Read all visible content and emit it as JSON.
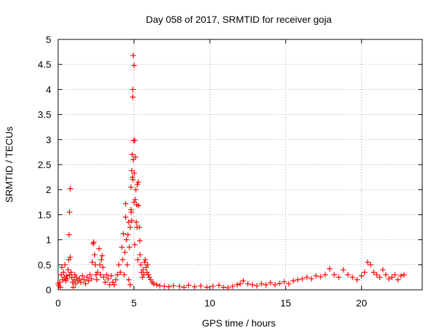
{
  "chart_data": {
    "type": "scatter",
    "title": "Day 058 of 2017, SRMTID for receiver goja",
    "xlabel": "GPS time / hours",
    "ylabel": "SRMTID / TECUs",
    "xlim": [
      0,
      24
    ],
    "ylim": [
      0,
      5
    ],
    "xticks": [
      "0",
      "5",
      "10",
      "15",
      "20"
    ],
    "yticks": [
      "0",
      "0.5",
      "1",
      "1.5",
      "2",
      "2.5",
      "3",
      "3.5",
      "4",
      "4.5",
      "5"
    ],
    "grid": true,
    "marker": "+",
    "series": [
      {
        "name": "SRMTID",
        "color": "#ff0000",
        "points": [
          [
            0.0,
            0.12
          ],
          [
            0.05,
            0.08
          ],
          [
            0.1,
            0.15
          ],
          [
            0.15,
            0.05
          ],
          [
            0.2,
            0.3
          ],
          [
            0.25,
            0.45
          ],
          [
            0.3,
            0.2
          ],
          [
            0.35,
            0.35
          ],
          [
            0.4,
            0.25
          ],
          [
            0.45,
            0.5
          ],
          [
            0.5,
            0.18
          ],
          [
            0.55,
            0.28
          ],
          [
            0.6,
            0.22
          ],
          [
            0.65,
            0.4
          ],
          [
            0.7,
            0.6
          ],
          [
            0.75,
            0.3
          ],
          [
            0.72,
            1.1
          ],
          [
            0.75,
            1.55
          ],
          [
            0.8,
            2.02
          ],
          [
            0.8,
            0.65
          ],
          [
            0.85,
            0.35
          ],
          [
            0.9,
            0.25
          ],
          [
            0.95,
            0.15
          ],
          [
            1.0,
            0.05
          ],
          [
            1.05,
            0.2
          ],
          [
            1.1,
            0.3
          ],
          [
            1.15,
            0.12
          ],
          [
            1.2,
            0.25
          ],
          [
            1.3,
            0.18
          ],
          [
            1.4,
            0.22
          ],
          [
            1.5,
            0.15
          ],
          [
            1.6,
            0.28
          ],
          [
            1.7,
            0.2
          ],
          [
            1.8,
            0.12
          ],
          [
            1.9,
            0.25
          ],
          [
            2.0,
            0.18
          ],
          [
            2.1,
            0.3
          ],
          [
            2.2,
            0.22
          ],
          [
            2.25,
            0.55
          ],
          [
            2.3,
            0.92
          ],
          [
            2.35,
            0.95
          ],
          [
            2.4,
            0.7
          ],
          [
            2.45,
            0.5
          ],
          [
            2.5,
            0.3
          ],
          [
            2.55,
            0.2
          ],
          [
            2.6,
            0.35
          ],
          [
            2.7,
            0.82
          ],
          [
            2.75,
            0.5
          ],
          [
            2.8,
            0.3
          ],
          [
            2.85,
            0.6
          ],
          [
            2.9,
            0.68
          ],
          [
            2.95,
            0.45
          ],
          [
            3.0,
            0.25
          ],
          [
            3.1,
            0.15
          ],
          [
            3.2,
            0.3
          ],
          [
            3.3,
            0.22
          ],
          [
            3.4,
            0.1
          ],
          [
            3.5,
            0.28
          ],
          [
            3.6,
            0.15
          ],
          [
            3.7,
            0.1
          ],
          [
            3.8,
            0.2
          ],
          [
            3.9,
            0.3
          ],
          [
            4.0,
            0.5
          ],
          [
            4.1,
            0.35
          ],
          [
            4.2,
            0.85
          ],
          [
            4.25,
            0.6
          ],
          [
            4.3,
            1.12
          ],
          [
            4.35,
            0.3
          ],
          [
            4.4,
            0.75
          ],
          [
            4.45,
            1.45
          ],
          [
            4.45,
            1.72
          ],
          [
            4.5,
            1.0
          ],
          [
            4.55,
            0.5
          ],
          [
            4.6,
            1.1
          ],
          [
            4.65,
            1.35
          ],
          [
            4.65,
            0.2
          ],
          [
            4.7,
            0.85
          ],
          [
            4.75,
            1.25
          ],
          [
            4.75,
            0.1
          ],
          [
            4.8,
            1.6
          ],
          [
            4.8,
            2.05
          ],
          [
            4.82,
            1.55
          ],
          [
            4.85,
            2.38
          ],
          [
            4.85,
            1.38
          ],
          [
            4.88,
            2.7
          ],
          [
            4.9,
            2.25
          ],
          [
            4.92,
            3.85
          ],
          [
            4.92,
            4.0
          ],
          [
            4.93,
            2.2
          ],
          [
            4.95,
            2.6
          ],
          [
            4.95,
            4.68
          ],
          [
            4.97,
            2.98
          ],
          [
            5.0,
            4.48
          ],
          [
            5.0,
            1.75
          ],
          [
            5.02,
            2.33
          ],
          [
            5.05,
            0.9
          ],
          [
            5.05,
            2.98
          ],
          [
            5.08,
            1.8
          ],
          [
            5.1,
            2.65
          ],
          [
            5.12,
            2.0
          ],
          [
            5.15,
            1.35
          ],
          [
            5.18,
            1.7
          ],
          [
            5.2,
            1.25
          ],
          [
            5.22,
            2.1
          ],
          [
            5.25,
            0.6
          ],
          [
            5.28,
            2.15
          ],
          [
            5.3,
            1.68
          ],
          [
            5.35,
            1.25
          ],
          [
            5.38,
            0.98
          ],
          [
            5.4,
            0.7
          ],
          [
            5.45,
            0.5
          ],
          [
            5.5,
            0.35
          ],
          [
            5.55,
            0.25
          ],
          [
            5.6,
            0.4
          ],
          [
            5.65,
            0.3
          ],
          [
            5.7,
            0.55
          ],
          [
            5.75,
            0.6
          ],
          [
            5.8,
            0.45
          ],
          [
            5.85,
            0.35
          ],
          [
            5.9,
            0.5
          ],
          [
            5.95,
            0.3
          ],
          [
            6.0,
            0.25
          ],
          [
            6.1,
            0.2
          ],
          [
            6.2,
            0.15
          ],
          [
            6.3,
            0.12
          ],
          [
            6.5,
            0.1
          ],
          [
            6.7,
            0.08
          ],
          [
            7.0,
            0.07
          ],
          [
            7.3,
            0.06
          ],
          [
            7.6,
            0.08
          ],
          [
            8.0,
            0.07
          ],
          [
            8.3,
            0.05
          ],
          [
            8.6,
            0.09
          ],
          [
            9.0,
            0.06
          ],
          [
            9.4,
            0.08
          ],
          [
            9.8,
            0.05
          ],
          [
            10.2,
            0.07
          ],
          [
            10.6,
            0.09
          ],
          [
            10.9,
            0.05
          ],
          [
            11.2,
            0.04
          ],
          [
            11.5,
            0.07
          ],
          [
            11.8,
            0.1
          ],
          [
            12.0,
            0.12
          ],
          [
            12.2,
            0.18
          ],
          [
            12.5,
            0.12
          ],
          [
            12.8,
            0.1
          ],
          [
            13.1,
            0.08
          ],
          [
            13.4,
            0.12
          ],
          [
            13.7,
            0.1
          ],
          [
            14.0,
            0.14
          ],
          [
            14.3,
            0.1
          ],
          [
            14.6,
            0.13
          ],
          [
            14.9,
            0.16
          ],
          [
            15.2,
            0.12
          ],
          [
            15.5,
            0.18
          ],
          [
            15.8,
            0.2
          ],
          [
            16.1,
            0.22
          ],
          [
            16.4,
            0.25
          ],
          [
            16.7,
            0.22
          ],
          [
            17.0,
            0.28
          ],
          [
            17.3,
            0.26
          ],
          [
            17.6,
            0.3
          ],
          [
            17.9,
            0.42
          ],
          [
            18.2,
            0.3
          ],
          [
            18.5,
            0.25
          ],
          [
            18.8,
            0.4
          ],
          [
            19.1,
            0.3
          ],
          [
            19.4,
            0.25
          ],
          [
            19.7,
            0.2
          ],
          [
            20.0,
            0.28
          ],
          [
            20.2,
            0.35
          ],
          [
            20.4,
            0.55
          ],
          [
            20.6,
            0.5
          ],
          [
            20.8,
            0.35
          ],
          [
            21.0,
            0.3
          ],
          [
            21.2,
            0.25
          ],
          [
            21.4,
            0.4
          ],
          [
            21.6,
            0.3
          ],
          [
            21.8,
            0.22
          ],
          [
            22.0,
            0.25
          ],
          [
            22.2,
            0.3
          ],
          [
            22.4,
            0.2
          ],
          [
            22.6,
            0.28
          ],
          [
            22.8,
            0.3
          ]
        ]
      }
    ]
  }
}
